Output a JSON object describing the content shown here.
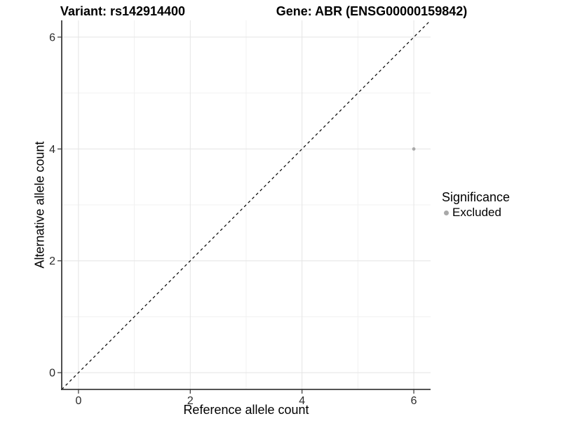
{
  "chart_data": {
    "type": "scatter",
    "title_left": "Variant: rs142914400",
    "title_right": "Gene: ABR (ENSG00000159842)",
    "xlabel": "Reference allele count",
    "ylabel": "Alternative allele count",
    "xlim": [
      -0.3,
      6.3
    ],
    "ylim": [
      -0.3,
      6.3
    ],
    "x_ticks": [
      0,
      2,
      4,
      6
    ],
    "y_ticks": [
      0,
      2,
      4,
      6
    ],
    "x_minor_ticks": [
      1,
      3,
      5
    ],
    "y_minor_ticks": [
      1,
      3,
      5
    ],
    "grid": true,
    "series": [
      {
        "name": "Excluded",
        "color": "#a9a9a9",
        "points": [
          {
            "x": 6,
            "y": 4
          }
        ]
      }
    ],
    "reference_line": {
      "kind": "identity",
      "slope": 1,
      "intercept": 0,
      "style": "dashed",
      "color": "#000000"
    },
    "legend": {
      "title": "Significance",
      "position": "right",
      "entries": [
        {
          "label": "Excluded",
          "color": "#a9a9a9"
        }
      ]
    },
    "colors": {
      "axis_line": "#3c3c3c",
      "tick_mark": "#333333",
      "tick_label": "#2b2b2b",
      "grid_major": "#e4e4e4",
      "grid_minor": "#f1f1f1",
      "background": "#ffffff"
    }
  }
}
